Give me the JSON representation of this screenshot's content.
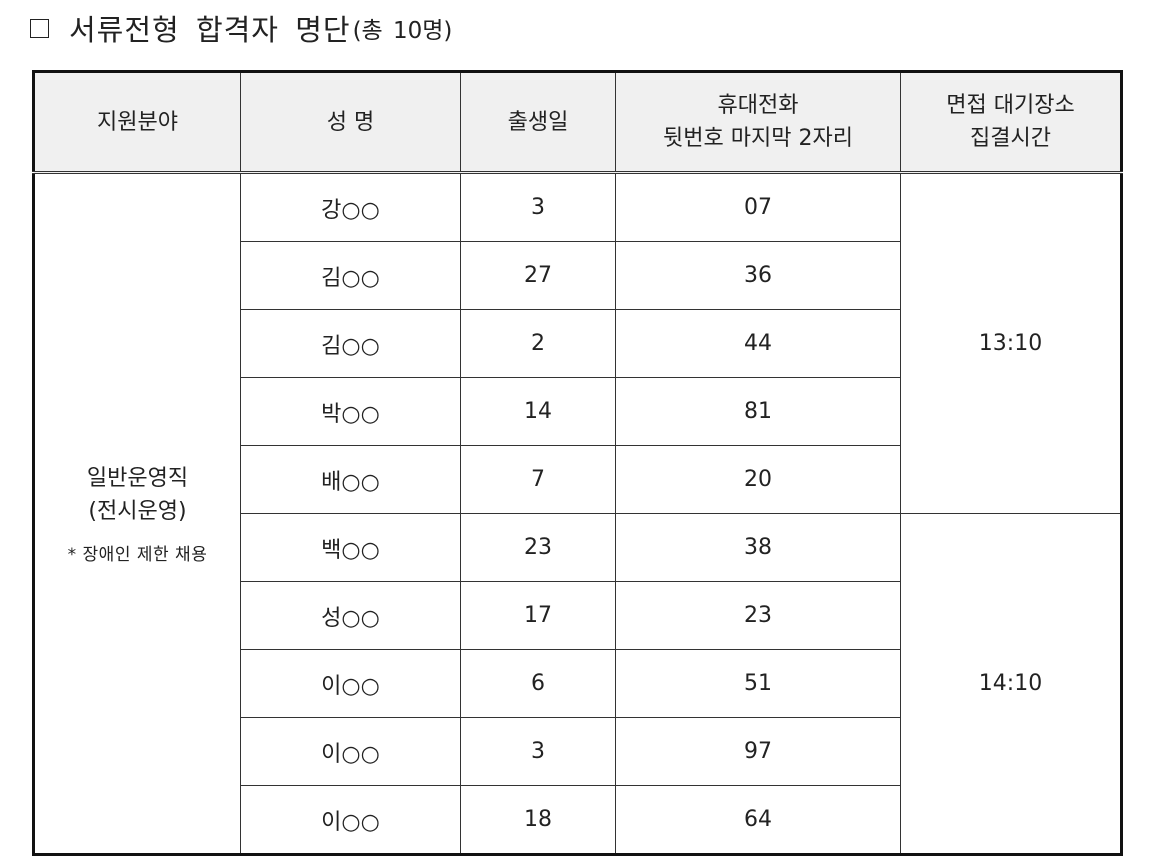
{
  "title": {
    "main": "서류전형 합격자 명단",
    "sub": "(총 10명)"
  },
  "table": {
    "headers": {
      "field": "지원분야",
      "name": "성 명",
      "birth": "출생일",
      "phone_line1": "휴대전화",
      "phone_line2": "뒷번호 마지막 2자리",
      "time_line1": "면접 대기장소",
      "time_line2": "집결시간"
    },
    "field": {
      "line1": "일반운영직",
      "line2": "(전시운영)",
      "note": "* 장애인 제한 채용"
    },
    "rows": [
      {
        "name": "강○○",
        "birth": "3",
        "phone": "07"
      },
      {
        "name": "김○○",
        "birth": "27",
        "phone": "36"
      },
      {
        "name": "김○○",
        "birth": "2",
        "phone": "44"
      },
      {
        "name": "박○○",
        "birth": "14",
        "phone": "81"
      },
      {
        "name": "배○○",
        "birth": "7",
        "phone": "20"
      },
      {
        "name": "백○○",
        "birth": "23",
        "phone": "38"
      },
      {
        "name": "성○○",
        "birth": "17",
        "phone": "23"
      },
      {
        "name": "이○○",
        "birth": "6",
        "phone": "51"
      },
      {
        "name": "이○○",
        "birth": "3",
        "phone": "97"
      },
      {
        "name": "이○○",
        "birth": "18",
        "phone": "64"
      }
    ],
    "times": [
      "13:10",
      "14:10"
    ]
  }
}
